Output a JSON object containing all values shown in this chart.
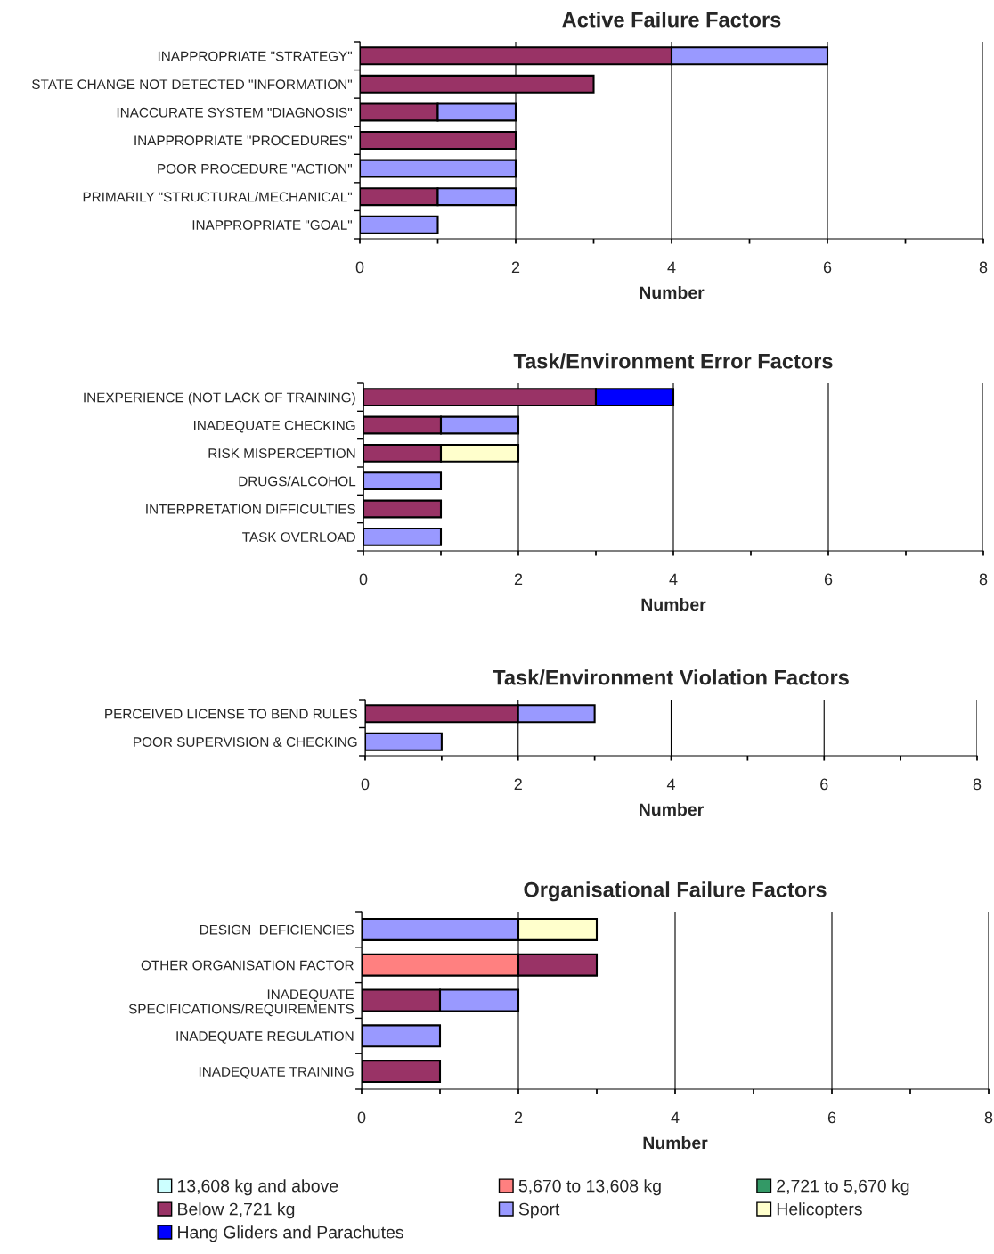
{
  "chart_data": [
    {
      "type": "bar",
      "orientation": "horizontal",
      "stacked": true,
      "title": "Active Failure Factors",
      "xlabel": "Number",
      "categories": [
        "INAPPROPRIATE \"STRATEGY\"",
        "STATE CHANGE NOT DETECTED \"INFORMATION\"",
        "INACCURATE SYSTEM \"DIAGNOSIS\"",
        "INAPPROPRIATE \"PROCEDURES\"",
        "POOR PROCEDURE \"ACTION\"",
        "PRIMARILY \"STRUCTURAL/MECHANICAL\"",
        "INAPPROPRIATE \"GOAL\""
      ],
      "series": [
        {
          "color": "#993366",
          "values": [
            4,
            3,
            1,
            2,
            null,
            1,
            null
          ]
        },
        {
          "color": "#9999ff",
          "values": [
            2,
            null,
            1,
            null,
            2,
            1,
            1
          ]
        }
      ],
      "xlim": [
        0,
        8
      ],
      "xticks": [
        0,
        {
          "value": 1,
          "label": null
        },
        2,
        {
          "value": 3,
          "label": null
        },
        4,
        {
          "value": 5,
          "label": null
        },
        6,
        {
          "value": 7,
          "label": null
        },
        8
      ],
      "grid": "x"
    },
    {
      "type": "bar",
      "orientation": "horizontal",
      "stacked": true,
      "title": "Task/Environment Error Factors",
      "xlabel": "Number",
      "categories": [
        "INEXPERIENCE (NOT LACK OF TRAINING)",
        "INADEQUATE CHECKING",
        "RISK MISPERCEPTION",
        "DRUGS/ALCOHOL",
        "INTERPRETATION DIFFICULTIES",
        "TASK OVERLOAD"
      ],
      "series": [
        {
          "color": "#993366",
          "values": [
            3,
            1,
            1,
            null,
            1,
            null
          ]
        },
        {
          "color": "#9999ff",
          "values": [
            null,
            1,
            null,
            1,
            null,
            1
          ]
        },
        {
          "color": "#ffffcc",
          "values": [
            null,
            null,
            1,
            null,
            null,
            null
          ]
        },
        {
          "color": "#0000ff",
          "values": [
            1,
            null,
            null,
            null,
            null,
            null
          ]
        }
      ],
      "xlim": [
        0,
        8
      ],
      "xticks": [
        0,
        {
          "value": 1,
          "label": null
        },
        2,
        {
          "value": 3,
          "label": null
        },
        4,
        {
          "value": 5,
          "label": null
        },
        6,
        {
          "value": 7,
          "label": null
        },
        8
      ],
      "grid": "x"
    },
    {
      "type": "bar",
      "orientation": "horizontal",
      "stacked": true,
      "title": "Task/Environment Violation Factors",
      "xlabel": "Number",
      "categories": [
        "PERCEIVED LICENSE TO BEND RULES",
        "POOR SUPERVISION & CHECKING"
      ],
      "series": [
        {
          "color": "#993366",
          "values": [
            2,
            null
          ]
        },
        {
          "color": "#9999ff",
          "values": [
            1,
            1
          ]
        }
      ],
      "xlim": [
        0,
        8
      ],
      "xticks": [
        0,
        {
          "value": 1,
          "label": null
        },
        2,
        {
          "value": 3,
          "label": null
        },
        4,
        {
          "value": 5,
          "label": null
        },
        6,
        {
          "value": 7,
          "label": null
        },
        8
      ],
      "grid": "x"
    },
    {
      "type": "bar",
      "orientation": "horizontal",
      "stacked": true,
      "title": "Organisational Failure Factors",
      "xlabel": "Number",
      "categories": [
        "DESIGN  DEFICIENCIES",
        "OTHER ORGANISATION FACTOR",
        "INADEQUATE\nSPECIFICATIONS/REQUIREMENTS",
        "INADEQUATE REGULATION",
        "INADEQUATE TRAINING"
      ],
      "series": [
        {
          "name": "13,608 kg and above",
          "color": "#ccffff",
          "values": [
            null,
            null,
            null,
            null,
            null
          ]
        },
        {
          "name": "5,670 to 13,608 kg",
          "color": "#ff8080",
          "values": [
            null,
            2,
            null,
            null,
            null
          ]
        },
        {
          "name": "2,721 to 5,670 kg",
          "color": "#339966",
          "values": [
            null,
            null,
            null,
            null,
            null
          ]
        },
        {
          "name": "Below 2,721 kg",
          "color": "#993366",
          "values": [
            null,
            1,
            1,
            null,
            1
          ]
        },
        {
          "name": "Sport",
          "color": "#9999ff",
          "values": [
            2,
            null,
            1,
            1,
            null
          ]
        },
        {
          "name": "Helicopters",
          "color": "#ffffcc",
          "values": [
            1,
            null,
            null,
            null,
            null
          ]
        },
        {
          "name": "Hang Gliders and Parachutes",
          "color": "#0000ff",
          "values": [
            null,
            null,
            null,
            null,
            null
          ]
        }
      ],
      "xlim": [
        0,
        8
      ],
      "xticks": [
        0,
        {
          "value": 1,
          "label": null
        },
        2,
        {
          "value": 3,
          "label": null
        },
        4,
        {
          "value": 5,
          "label": null
        },
        6,
        {
          "value": 7,
          "label": null
        },
        8
      ],
      "grid": "x",
      "legend": "bottom"
    }
  ]
}
